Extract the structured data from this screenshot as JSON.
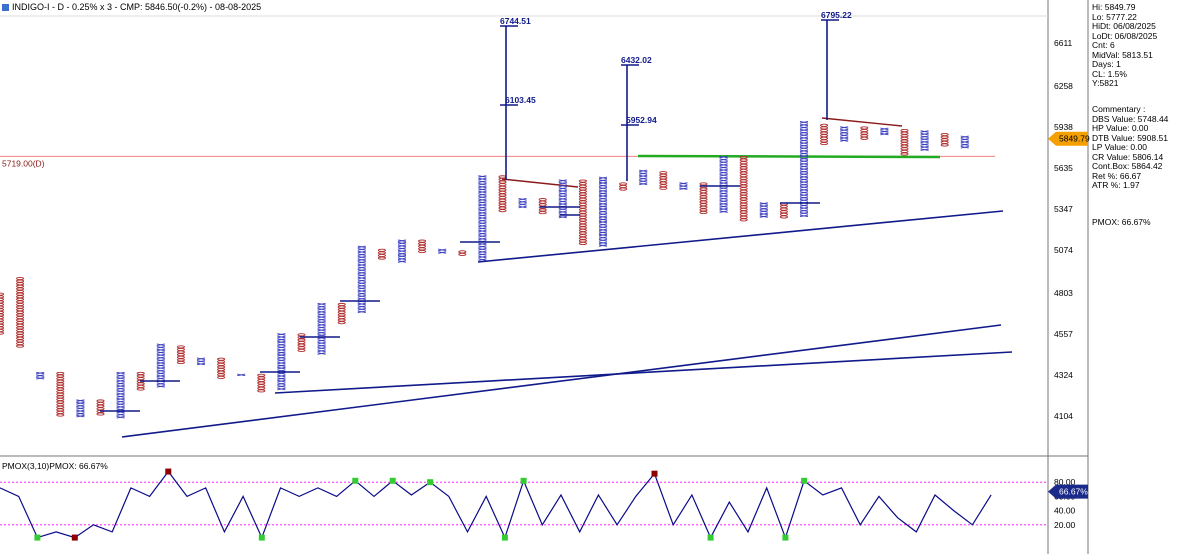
{
  "header": {
    "title": "INDIGO-I - D - 0.25% x 3 - CMP: 5846.50(-0.2%) - 08-08-2025"
  },
  "info_panel": {
    "stats": [
      "Hi: 5849.79",
      "Lo: 5777.22",
      "HiDt: 06/08/2025",
      "LoDt: 06/08/2025",
      "Cnt: 6",
      "MidVal: 5813.51",
      "Days: 1",
      "CL: 1.5%",
      "Y:5821"
    ],
    "commentary": [
      "Commentary :",
      "DBS Value:  5748.44",
      "HP Value: 0.00",
      "DTB Value: 5908.51",
      "LP Value: 0.00",
      "CR Value: 5806.14",
      "Cont.Box: 5864.42",
      "Ret %: 66.67",
      "ATR %: 1.97"
    ],
    "pmox": "PMOX: 66.67%"
  },
  "indicator": {
    "title": "PMOX(3,10)PMOX: 66.67%",
    "current_label": "66.67%",
    "ticks": [
      "80.00",
      "60.00",
      "40.00",
      "20.00"
    ]
  },
  "colors": {
    "x_col": "#3b3fbf",
    "o_col": "#b03030",
    "line": "#101a8a",
    "level": "#f08080",
    "green": "#22aa22",
    "red_line": "#8b1a1a",
    "pmox_line": "#0a0a8a",
    "pink": "#ff00ff"
  },
  "chart_data": {
    "type": "point-and-figure",
    "price_axis": {
      "ticks": [
        "6611",
        "6258",
        "5938",
        "5635",
        "5347",
        "5074",
        "4803",
        "4557",
        "4324",
        "4104"
      ],
      "cmp_label": "5849.79"
    },
    "level_label": "5719.00(D)",
    "annotations": [
      "6744.51",
      "6103.45",
      "6432.02",
      "5952.94",
      "6795.22"
    ],
    "columns": [
      {
        "t": "O",
        "hi": 4803,
        "lo": 4557
      },
      {
        "t": "O",
        "hi": 4900,
        "lo": 4480
      },
      {
        "t": "X",
        "hi": 4340,
        "lo": 4300
      },
      {
        "t": "O",
        "hi": 4340,
        "lo": 4104
      },
      {
        "t": "X",
        "hi": 4190,
        "lo": 4104
      },
      {
        "t": "O",
        "hi": 4190,
        "lo": 4104
      },
      {
        "t": "X",
        "hi": 4340,
        "lo": 4090
      },
      {
        "t": "O",
        "hi": 4340,
        "lo": 4240
      },
      {
        "t": "X",
        "hi": 4500,
        "lo": 4260
      },
      {
        "t": "O",
        "hi": 4490,
        "lo": 4390
      },
      {
        "t": "X",
        "hi": 4420,
        "lo": 4380
      },
      {
        "t": "O",
        "hi": 4420,
        "lo": 4310
      },
      {
        "t": "X",
        "hi": 4330,
        "lo": 4320
      },
      {
        "t": "O",
        "hi": 4330,
        "lo": 4230
      },
      {
        "t": "X",
        "hi": 4560,
        "lo": 4240
      },
      {
        "t": "O",
        "hi": 4560,
        "lo": 4460
      },
      {
        "t": "X",
        "hi": 4740,
        "lo": 4440
      },
      {
        "t": "O",
        "hi": 4740,
        "lo": 4620
      },
      {
        "t": "X",
        "hi": 5100,
        "lo": 4690
      },
      {
        "t": "O",
        "hi": 5080,
        "lo": 5010
      },
      {
        "t": "X",
        "hi": 5140,
        "lo": 4990
      },
      {
        "t": "O",
        "hi": 5140,
        "lo": 5050
      },
      {
        "t": "X",
        "hi": 5080,
        "lo": 5050
      },
      {
        "t": "O",
        "hi": 5070,
        "lo": 5030
      },
      {
        "t": "X",
        "hi": 5580,
        "lo": 5010
      },
      {
        "t": "O",
        "hi": 5580,
        "lo": 5330
      },
      {
        "t": "X",
        "hi": 5420,
        "lo": 5360
      },
      {
        "t": "O",
        "hi": 5420,
        "lo": 5320
      },
      {
        "t": "X",
        "hi": 5550,
        "lo": 5290
      },
      {
        "t": "O",
        "hi": 5550,
        "lo": 5100
      },
      {
        "t": "X",
        "hi": 5570,
        "lo": 5100
      },
      {
        "t": "O",
        "hi": 5530,
        "lo": 5470
      },
      {
        "t": "X",
        "hi": 5620,
        "lo": 5520
      },
      {
        "t": "O",
        "hi": 5610,
        "lo": 5490
      },
      {
        "t": "X",
        "hi": 5530,
        "lo": 5490
      },
      {
        "t": "O",
        "hi": 5530,
        "lo": 5320
      },
      {
        "t": "X",
        "hi": 5720,
        "lo": 5320
      },
      {
        "t": "O",
        "hi": 5720,
        "lo": 5270
      },
      {
        "t": "X",
        "hi": 5390,
        "lo": 5290
      },
      {
        "t": "O",
        "hi": 5390,
        "lo": 5290
      },
      {
        "t": "X",
        "hi": 5980,
        "lo": 5300
      },
      {
        "t": "O",
        "hi": 5960,
        "lo": 5800
      },
      {
        "t": "X",
        "hi": 5940,
        "lo": 5840
      },
      {
        "t": "O",
        "hi": 5940,
        "lo": 5840
      },
      {
        "t": "X",
        "hi": 5930,
        "lo": 5880
      },
      {
        "t": "O",
        "hi": 5920,
        "lo": 5730
      },
      {
        "t": "X",
        "hi": 5910,
        "lo": 5760
      },
      {
        "t": "O",
        "hi": 5890,
        "lo": 5800
      },
      {
        "t": "X",
        "hi": 5870,
        "lo": 5790
      }
    ],
    "pmox": [
      72,
      60,
      2,
      10,
      2,
      20,
      10,
      72,
      60,
      95,
      60,
      72,
      10,
      60,
      2,
      72,
      60,
      72,
      60,
      82,
      60,
      82,
      62,
      80,
      60,
      10,
      60,
      2,
      82,
      20,
      62,
      10,
      62,
      20,
      60,
      92,
      20,
      62,
      2,
      52,
      10,
      72,
      2,
      82,
      62,
      72,
      20,
      60,
      30,
      10,
      62,
      40,
      20,
      62
    ]
  }
}
